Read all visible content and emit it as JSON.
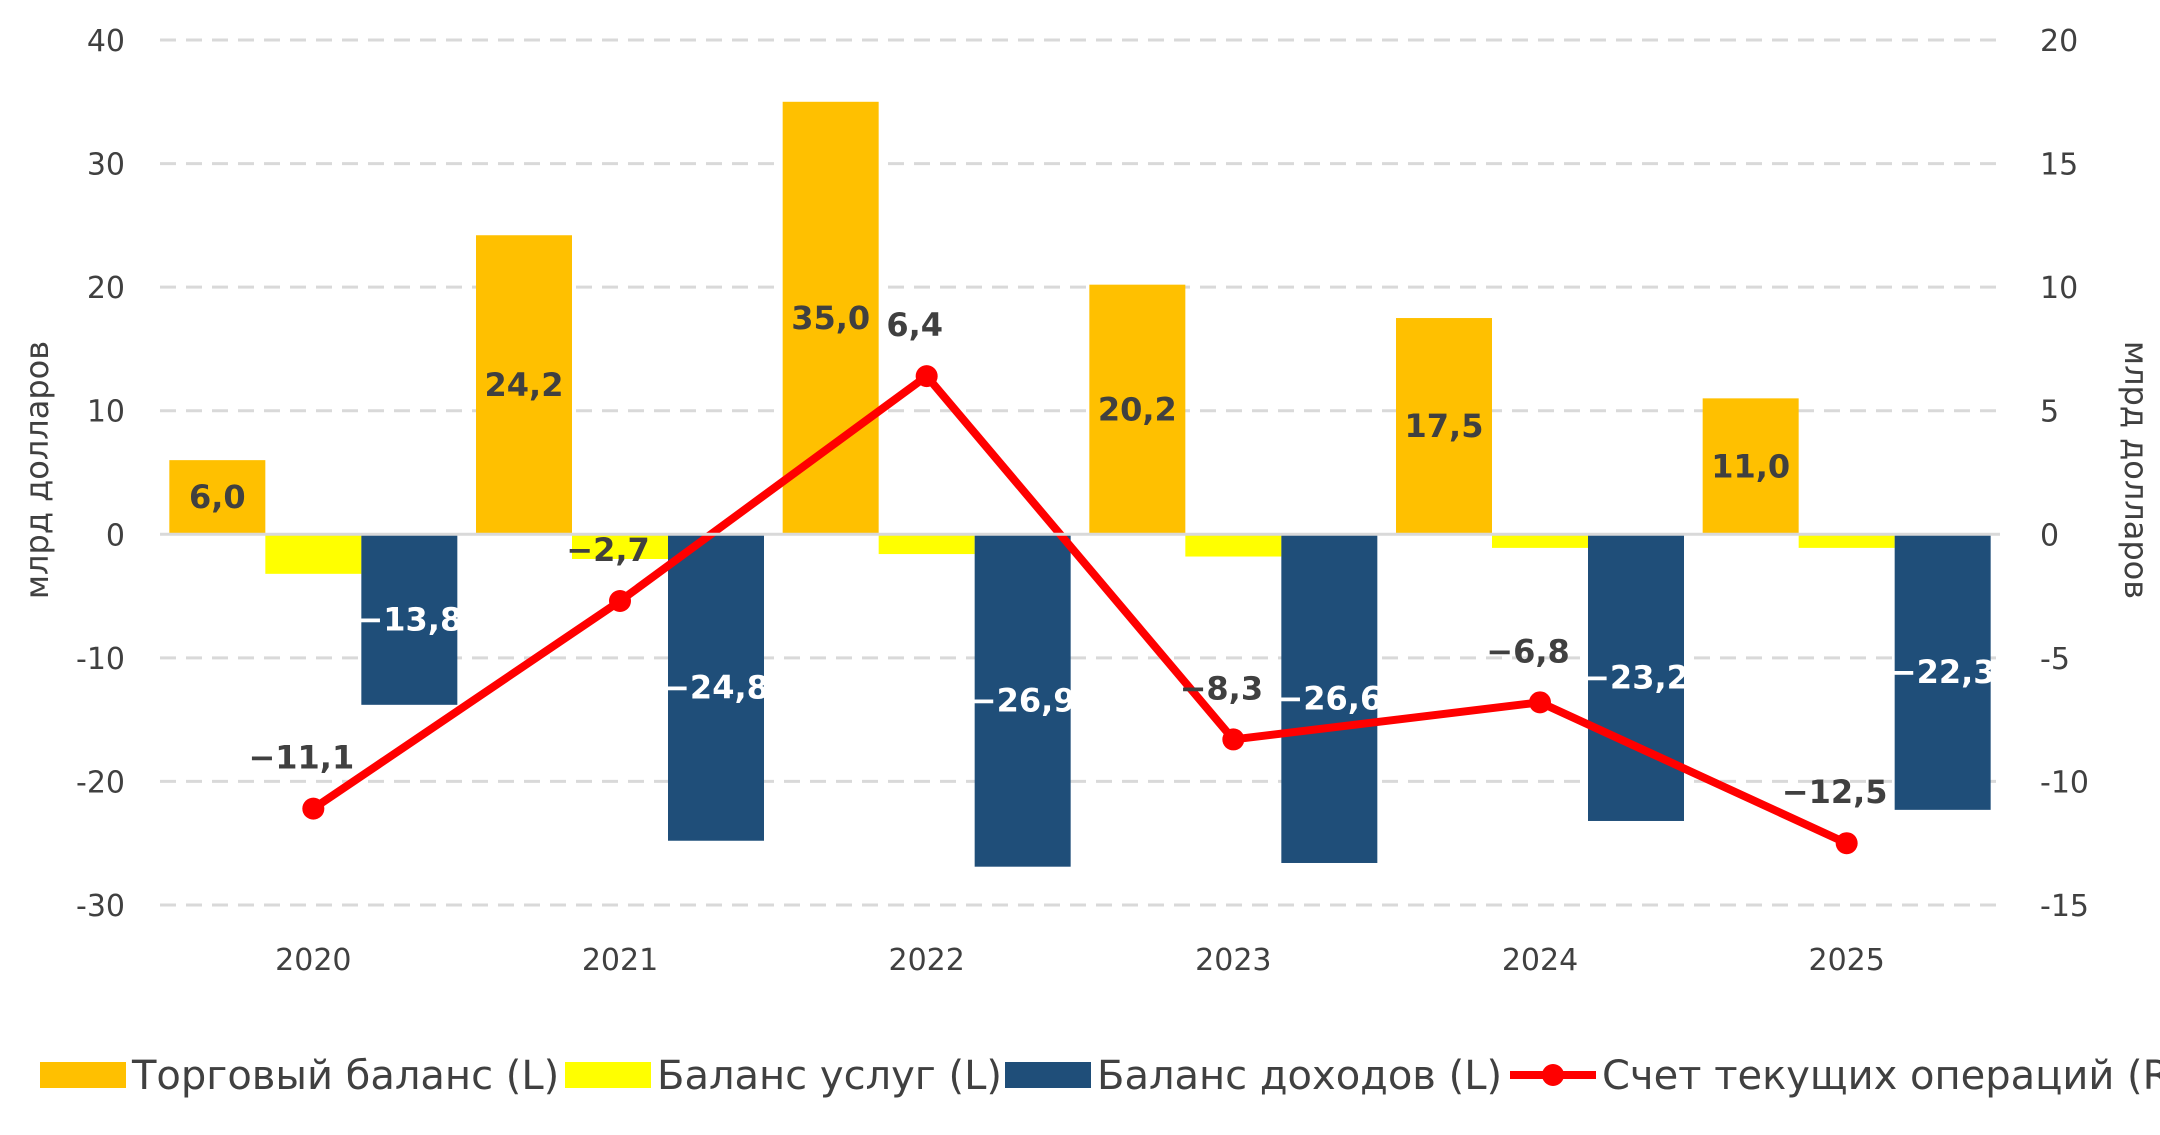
{
  "chart_data": {
    "type": "bar",
    "categories": [
      "2020",
      "2021",
      "2022",
      "2023",
      "2024",
      "2025"
    ],
    "ylabel_left": "млрд долларов",
    "ylabel_right": "млрд долларов",
    "ylim_left": [
      -30,
      40
    ],
    "ylim_right": [
      -15,
      20
    ],
    "yticks_left": [
      "40",
      "30",
      "20",
      "10",
      "0",
      "-10",
      "-20",
      "-30"
    ],
    "yticks_right": [
      "20",
      "15",
      "10",
      "5",
      "0",
      "-5",
      "-10",
      "-15"
    ],
    "grid": "horizontal dashed",
    "legend_position": "bottom",
    "series": [
      {
        "name": "Торговый баланс (L)",
        "kind": "bar",
        "axis": "left",
        "color": "#FFC000",
        "values": [
          6.0,
          24.2,
          35.0,
          20.2,
          17.5,
          11.0
        ],
        "labels": [
          "6,0",
          "24,2",
          "35,0",
          "20,2",
          "17,5",
          "11,0"
        ]
      },
      {
        "name": "Баланс услуг (L)",
        "kind": "bar",
        "axis": "left",
        "color": "#FFFF00",
        "values": [
          -3.2,
          -2.0,
          -1.6,
          -1.8,
          -1.1,
          -1.1
        ],
        "labels": []
      },
      {
        "name": "Баланс доходов (L)",
        "kind": "bar",
        "axis": "left",
        "color": "#1F4E79",
        "values": [
          -13.8,
          -24.8,
          -26.9,
          -26.6,
          -23.2,
          -22.3
        ],
        "labels": [
          "−13,8",
          "−24,8",
          "−26,9",
          "−26,6",
          "−23,2",
          "−22,3"
        ]
      },
      {
        "name": "Счет текущих операций (R)",
        "kind": "line",
        "axis": "right",
        "color": "#FF0000",
        "values": [
          -11.1,
          -2.7,
          6.4,
          -8.3,
          -6.8,
          -12.5
        ],
        "labels": [
          "−11,1",
          "−2,7",
          "6,4",
          "−8,3",
          "−6,8",
          "−12,5"
        ]
      }
    ]
  }
}
